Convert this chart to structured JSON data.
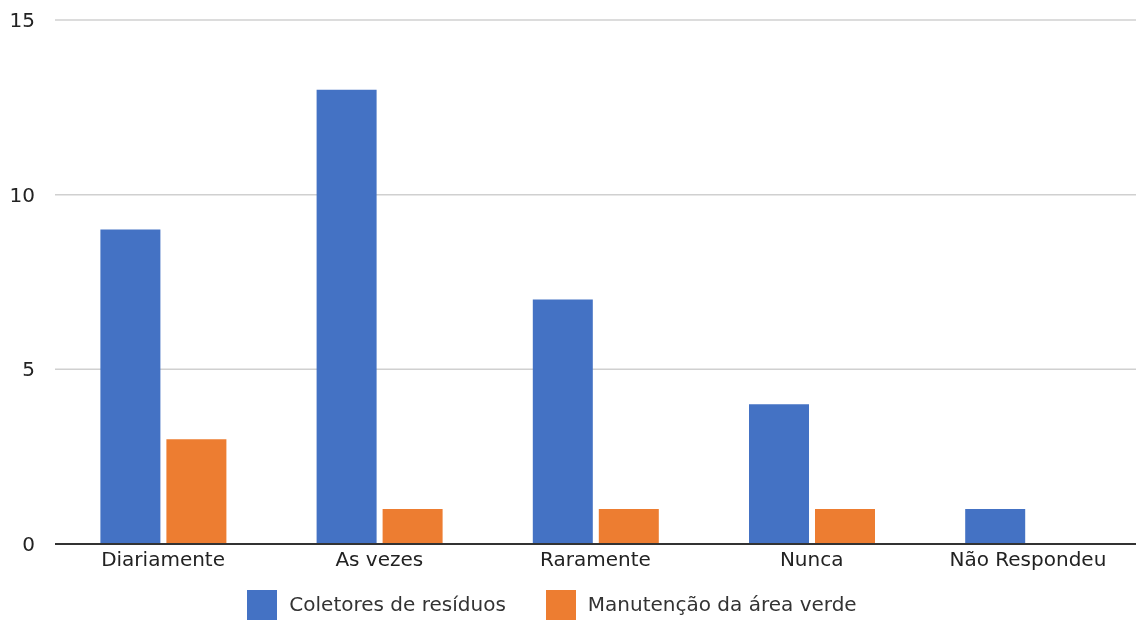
{
  "chart_data": {
    "type": "bar",
    "categories": [
      "Diariamente",
      "As vezes",
      "Raramente",
      "Nunca",
      "Não Respondeu"
    ],
    "series": [
      {
        "name": "Coletores de resíduos",
        "color": "#4472c4",
        "values": [
          9,
          13,
          7,
          4,
          1
        ]
      },
      {
        "name": "Manutenção da área verde",
        "color": "#ed7d31",
        "values": [
          3,
          1,
          1,
          1,
          0
        ]
      }
    ],
    "ylim": [
      0,
      15
    ],
    "yticks": [
      0,
      5,
      10,
      15
    ],
    "grid": "y",
    "legend": "bottom"
  }
}
